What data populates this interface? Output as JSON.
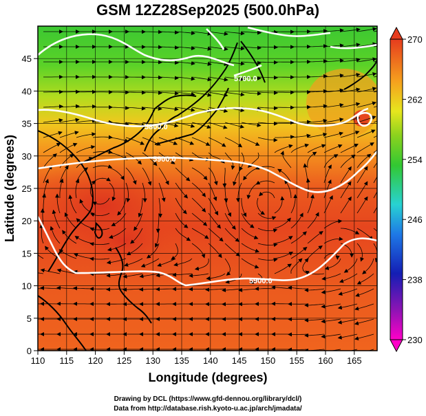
{
  "title": "GSM 12Z28Sep2025 (500.0hPa)",
  "x_axis": {
    "label": "Longitude (degrees)",
    "ticks": [
      "110",
      "115",
      "120",
      "125",
      "130",
      "135",
      "140",
      "145",
      "150",
      "155",
      "160",
      "165"
    ]
  },
  "y_axis": {
    "label": "Latitude  (degrees)",
    "ticks": [
      "0",
      "5",
      "10",
      "15",
      "20",
      "25",
      "30",
      "35",
      "40",
      "45"
    ]
  },
  "colorbar": {
    "ticks": [
      "230",
      "238",
      "246",
      "254",
      "262",
      "270"
    ]
  },
  "contour_labels": [
    "5800.0",
    "5900.0",
    "5900.0",
    "5700.0"
  ],
  "credits": [
    "Drawing by DCL (https://www.gfd-dennou.org/library/dcl/)",
    "Data from http://database.rish.kyoto-u.ac.jp/arch/jmadata/"
  ],
  "colors": {
    "green": "#3cc832",
    "yellow": "#e6e61e",
    "orange": "#f5a01e",
    "red": "#e63c1e",
    "cyan": "#28d2d2",
    "blue": "#1428c8",
    "magenta": "#dc1eb4"
  }
}
